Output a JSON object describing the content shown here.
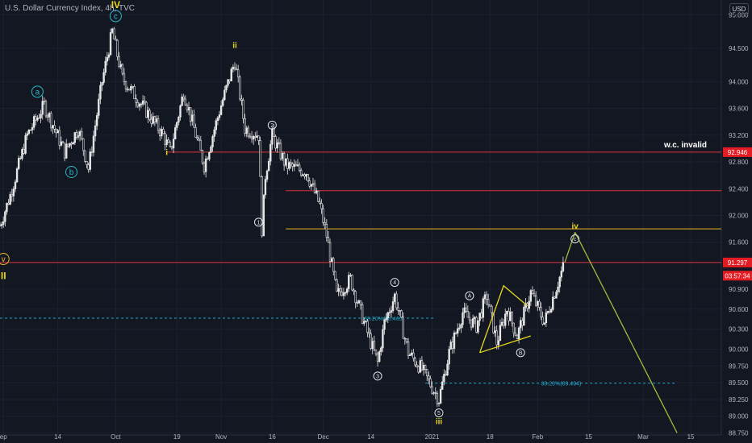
{
  "header": {
    "title": "U.S. Dollar Currency Index, 4h, TVC",
    "currency_button": "USD"
  },
  "colors": {
    "background": "#131722",
    "candle": "#e6e6e6",
    "axis_text": "#b2b5be",
    "red_line": "#e0343c",
    "orange_line": "#f0b928",
    "wave_yellow": "#e8d81f",
    "wave_cyan": "#26b9c6",
    "circle_white": "#e0e3eb",
    "projection": "#a8b840",
    "fib": "#1fa7c4",
    "price_badge": "#e31b23"
  },
  "chart_data": {
    "type": "candlestick",
    "title": "U.S. Dollar Currency Index, 4h, TVC",
    "timeframe": "4h",
    "x_ticks": [
      "ep",
      "14",
      "Oct",
      "19",
      "Nov",
      "16",
      "Dec",
      "14",
      "2021",
      "18",
      "Feb",
      "15",
      "Mar",
      "15"
    ],
    "x_tick_days": [
      -2,
      14,
      31,
      49,
      62,
      77,
      92,
      106,
      124,
      141,
      155,
      170,
      186,
      200
    ],
    "y_ticks": [
      95.0,
      94.5,
      94.0,
      93.6,
      93.2,
      92.8,
      92.4,
      92.0,
      91.6,
      90.9,
      90.6,
      90.3,
      90.0,
      89.75,
      89.5,
      89.25,
      89.0,
      88.75
    ],
    "y_tick_labels": [
      "95.000",
      "94.500",
      "94.000",
      "93.600",
      "93.200",
      "92.800",
      "92.400",
      "92.000",
      "91.600",
      "90.900",
      "90.600",
      "90.300",
      "90.000",
      "89.750",
      "89.500",
      "89.250",
      "89.000",
      "88.750"
    ],
    "ylim": [
      88.72,
      95.22
    ],
    "xlim_days": [
      -3,
      209
    ],
    "price_path": [
      [
        -3,
        91.85
      ],
      [
        0,
        92.3
      ],
      [
        5,
        93.2
      ],
      [
        10,
        93.65
      ],
      [
        16,
        92.95
      ],
      [
        20,
        93.3
      ],
      [
        23,
        92.7
      ],
      [
        27,
        94.0
      ],
      [
        30,
        94.75
      ],
      [
        33,
        94.05
      ],
      [
        38,
        93.7
      ],
      [
        45,
        93.2
      ],
      [
        47,
        92.95
      ],
      [
        51,
        93.85
      ],
      [
        57,
        92.75
      ],
      [
        62,
        93.65
      ],
      [
        66,
        94.3
      ],
      [
        69,
        93.3
      ],
      [
        73,
        93.2
      ],
      [
        74,
        91.8
      ],
      [
        75,
        92.6
      ],
      [
        77,
        93.2
      ],
      [
        81,
        92.75
      ],
      [
        87,
        92.65
      ],
      [
        91,
        92.15
      ],
      [
        93,
        91.7
      ],
      [
        96,
        90.8
      ],
      [
        100,
        91.05
      ],
      [
        104,
        90.4
      ],
      [
        108,
        89.8
      ],
      [
        110,
        90.4
      ],
      [
        113,
        90.8
      ],
      [
        117,
        89.95
      ],
      [
        121,
        89.7
      ],
      [
        126,
        89.25
      ],
      [
        129,
        89.95
      ],
      [
        133,
        90.55
      ],
      [
        137,
        90.35
      ],
      [
        140,
        90.8
      ],
      [
        143,
        90.1
      ],
      [
        146,
        90.6
      ],
      [
        149,
        90.2
      ],
      [
        153,
        90.85
      ],
      [
        157,
        90.4
      ],
      [
        163,
        91.3
      ]
    ],
    "horizontal_lines": [
      {
        "price": 92.946,
        "color": "red",
        "label": "w.c. invalid"
      },
      {
        "price": 92.37,
        "color": "red",
        "label": ""
      },
      {
        "price": 91.8,
        "color": "orange",
        "label": ""
      },
      {
        "price": 91.297,
        "color": "red",
        "label": ""
      }
    ],
    "fib_levels": [
      {
        "label": "38.20%(90.465)",
        "price": 90.465,
        "from_day": -3,
        "to_day": 125
      },
      {
        "label": "38.20%(89.494)",
        "price": 89.494,
        "from_day": 122,
        "to_day": 196
      }
    ],
    "wave_labels": [
      {
        "text": "IV",
        "day": 31,
        "price": 95.15,
        "style": "yellow-roman"
      },
      {
        "text": "c",
        "day": 31,
        "price": 94.98,
        "style": "cyan-circle"
      },
      {
        "text": "a",
        "day": 8,
        "price": 93.85,
        "style": "cyan-circle"
      },
      {
        "text": "b",
        "day": 18,
        "price": 92.65,
        "style": "cyan-circle"
      },
      {
        "text": "v",
        "day": -2,
        "price": 91.35,
        "style": "orange-circle"
      },
      {
        "text": "II",
        "day": -2,
        "price": 91.1,
        "style": "yellow-roman"
      },
      {
        "text": "ii",
        "day": 66,
        "price": 94.55,
        "style": "yellow-roman"
      },
      {
        "text": "i",
        "day": 46,
        "price": 92.95,
        "style": "yellow-roman"
      },
      {
        "text": "2",
        "day": 77,
        "price": 93.35,
        "style": "white-circle"
      },
      {
        "text": "1",
        "day": 73,
        "price": 91.9,
        "style": "white-circle"
      },
      {
        "text": "4",
        "day": 113,
        "price": 91.0,
        "style": "white-circle"
      },
      {
        "text": "3",
        "day": 108,
        "price": 89.6,
        "style": "white-circle"
      },
      {
        "text": "5",
        "day": 126,
        "price": 89.05,
        "style": "white-circle"
      },
      {
        "text": "iii",
        "day": 126,
        "price": 88.93,
        "style": "yellow-roman"
      },
      {
        "text": "A",
        "day": 135,
        "price": 90.8,
        "style": "white-circle"
      },
      {
        "text": "B",
        "day": 150,
        "price": 89.95,
        "style": "white-circle"
      },
      {
        "text": "iv",
        "day": 166,
        "price": 91.85,
        "style": "yellow-roman"
      },
      {
        "text": "c",
        "day": 166,
        "price": 91.65,
        "style": "white-circle"
      }
    ],
    "triangle": {
      "upper": [
        [
          138,
          89.95
        ],
        [
          145,
          90.95
        ],
        [
          152,
          90.65
        ]
      ],
      "lower": [
        [
          138,
          89.95
        ],
        [
          153,
          90.2
        ]
      ]
    },
    "projection": {
      "from": [
        166,
        91.75
      ],
      "to": [
        196,
        88.75
      ]
    },
    "price_badges": [
      {
        "price": 92.946,
        "text": "92.946"
      },
      {
        "price": 91.297,
        "text": "91.297"
      },
      {
        "price": 91.1,
        "text": "03:57:34"
      }
    ],
    "annotations": [
      "w.c. invalid"
    ]
  }
}
